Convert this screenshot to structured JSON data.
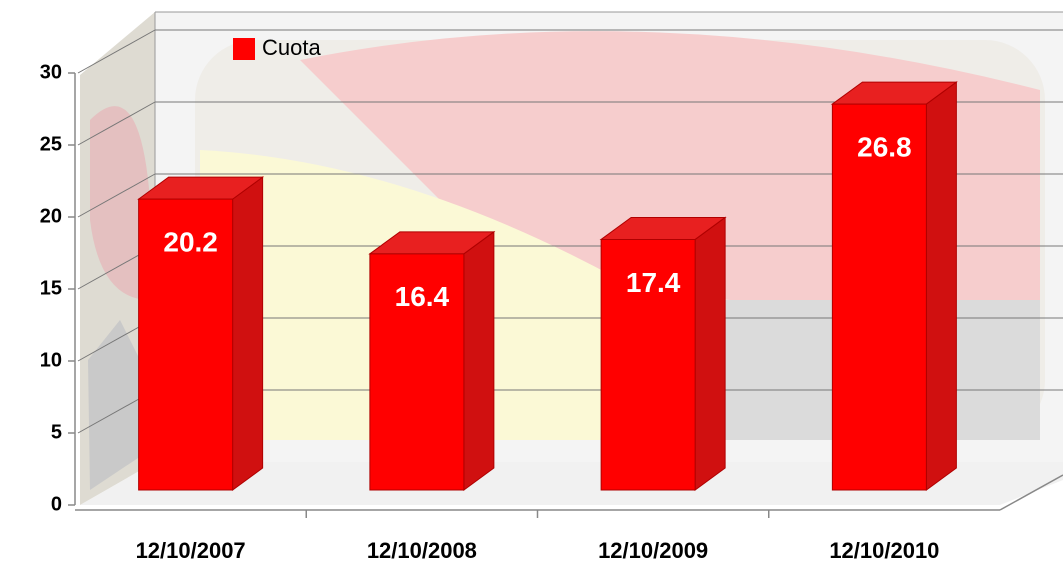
{
  "chart_data": {
    "type": "bar3d",
    "categories": [
      "12/10/2007",
      "12/10/2008",
      "12/10/2009",
      "12/10/2010"
    ],
    "series": [
      {
        "name": "Cuota",
        "color": "#ff0000",
        "values": [
          20.2,
          16.4,
          17.4,
          26.8
        ]
      }
    ],
    "ylim": [
      0,
      30
    ],
    "yticks": [
      0,
      5,
      10,
      15,
      20,
      25,
      30
    ],
    "grid": true,
    "legend": "top-left"
  }
}
